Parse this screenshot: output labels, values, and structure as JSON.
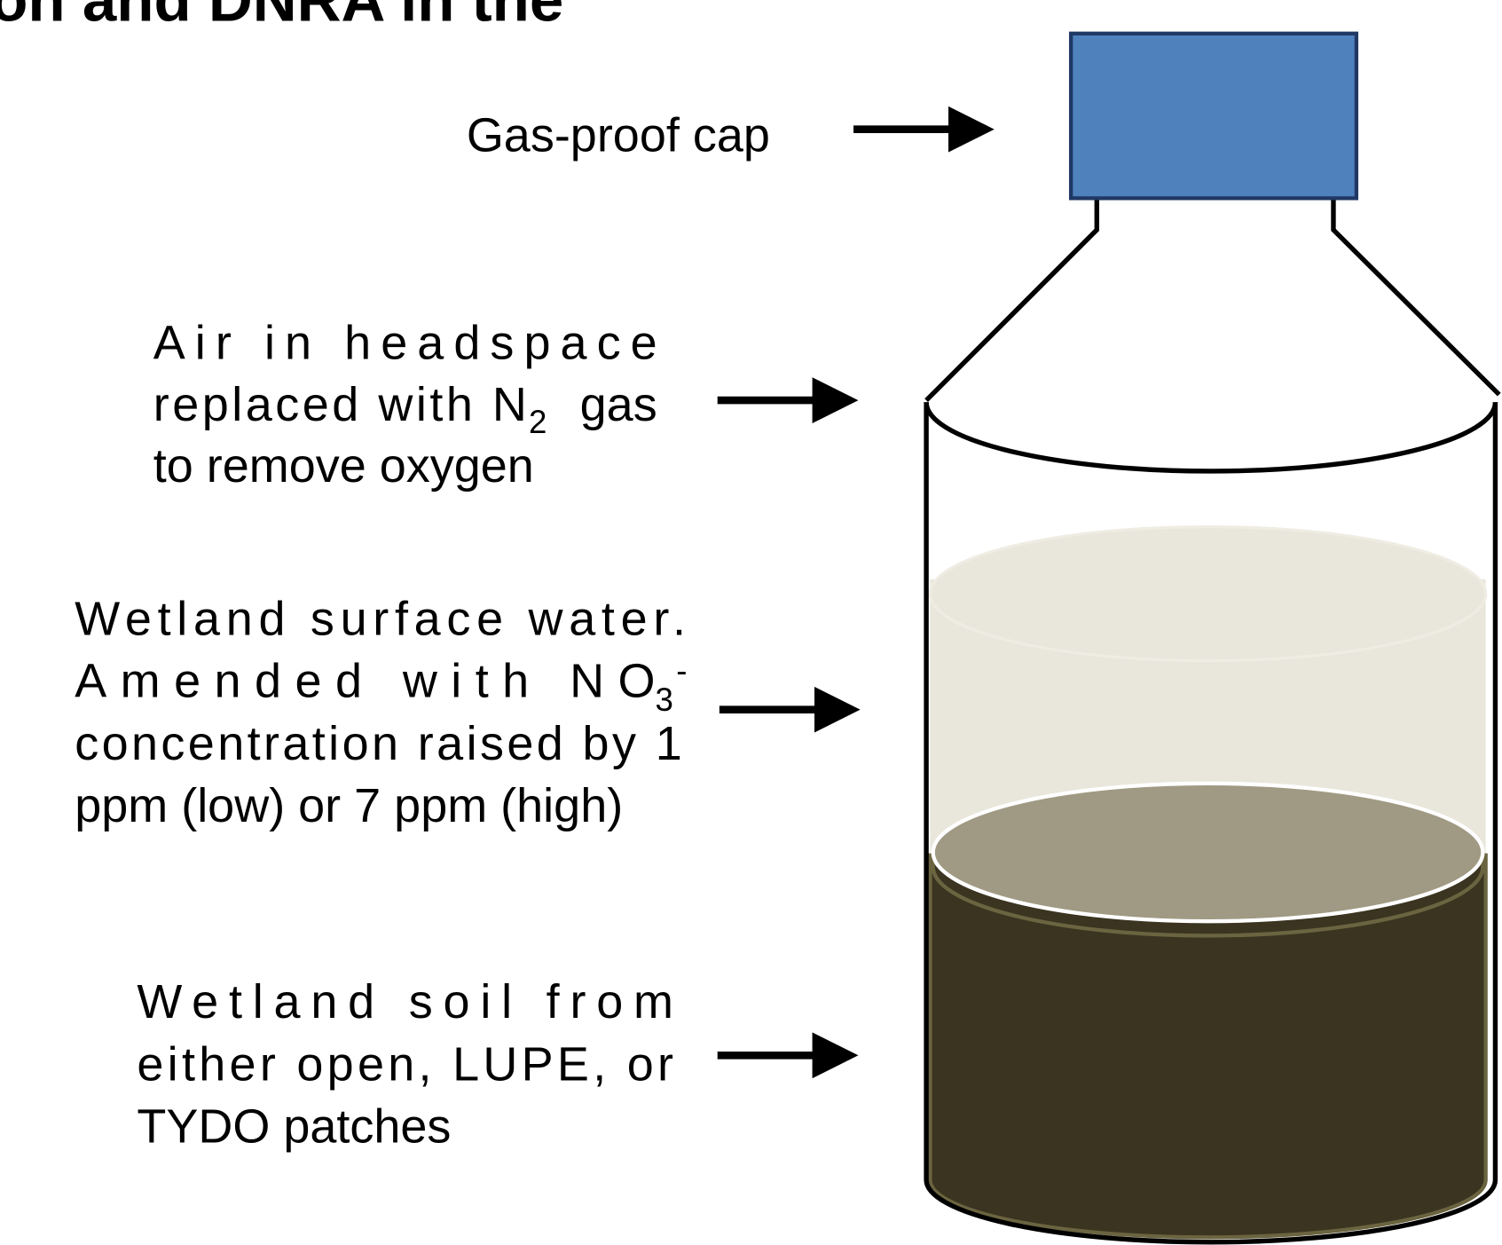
{
  "title": "on and DNRA in the",
  "cap_label": "Gas-proof cap",
  "headspace_label": {
    "line1": "Air in headspace",
    "line2_pre": "replaced with N",
    "line2_sub": "2",
    "line2_post": "gas",
    "line3": "to remove oxygen"
  },
  "water_label": {
    "line1": "Wetland surface water.",
    "line2_pre": "Amended with NO",
    "line2_sub": "3",
    "line2_sup": "-",
    "line3": "concentration raised by 1",
    "line4": "ppm (low) or 7 ppm (high)"
  },
  "soil_label": {
    "line1": "Wetland soil from",
    "line2": "either open, LUPE, or",
    "line3": "TYDO patches"
  }
}
